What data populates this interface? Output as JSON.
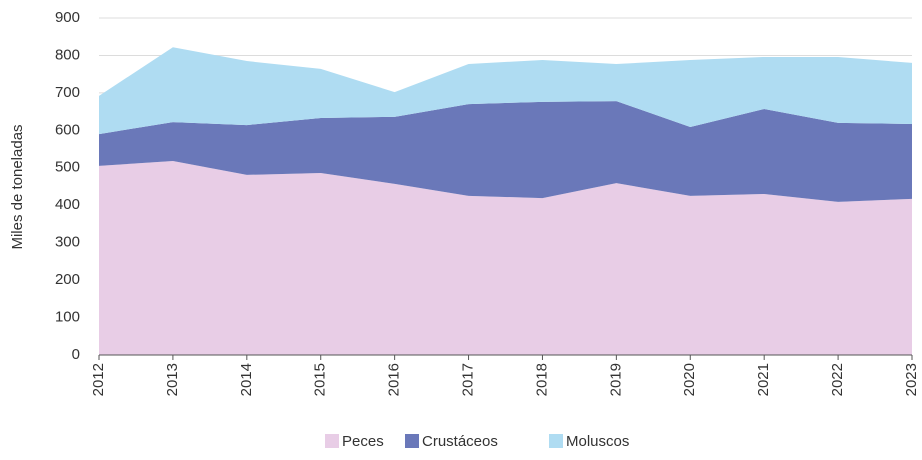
{
  "chart_data": {
    "type": "stacked_area",
    "y_label": "Miles de toneladas",
    "categories": [
      "2012",
      "2013",
      "2014",
      "2015",
      "2016",
      "2017",
      "2018",
      "2019",
      "2020",
      "2021",
      "2022",
      "2023"
    ],
    "series": [
      {
        "name": "Peces",
        "color": "#e8cde6",
        "values": [
          505,
          518,
          481,
          486,
          457,
          425,
          419,
          459,
          425,
          430,
          409,
          417
        ]
      },
      {
        "name": "Crustáceos",
        "color": "#6a78b9",
        "values": [
          85,
          104,
          133,
          147,
          179,
          245,
          257,
          219,
          184,
          227,
          211,
          200
        ]
      },
      {
        "name": "Moluscos",
        "color": "#afdcf2",
        "values": [
          102,
          200,
          171,
          131,
          66,
          107,
          112,
          99,
          179,
          139,
          176,
          163
        ]
      }
    ],
    "ylim": [
      0,
      900
    ],
    "yticks": [
      0,
      100,
      200,
      300,
      400,
      500,
      600,
      700,
      800,
      900
    ],
    "grid": true
  }
}
